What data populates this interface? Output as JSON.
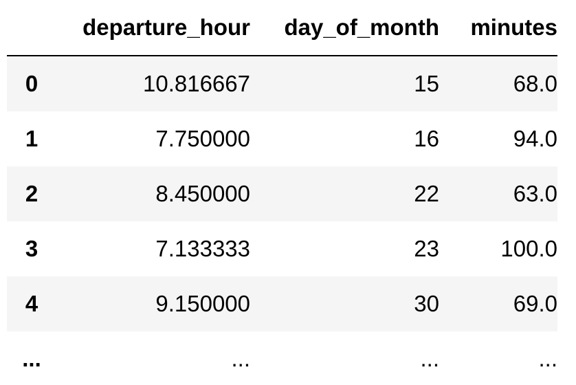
{
  "table": {
    "columns": [
      "departure_hour",
      "day_of_month",
      "minutes"
    ],
    "rows": [
      {
        "index": "0",
        "values": [
          "10.816667",
          "15",
          "68.0"
        ]
      },
      {
        "index": "1",
        "values": [
          "7.750000",
          "16",
          "94.0"
        ]
      },
      {
        "index": "2",
        "values": [
          "8.450000",
          "22",
          "63.0"
        ]
      },
      {
        "index": "3",
        "values": [
          "7.133333",
          "23",
          "100.0"
        ]
      },
      {
        "index": "4",
        "values": [
          "9.150000",
          "30",
          "69.0"
        ]
      }
    ],
    "ellipsis": {
      "index": "...",
      "values": [
        "...",
        "...",
        "..."
      ]
    }
  }
}
